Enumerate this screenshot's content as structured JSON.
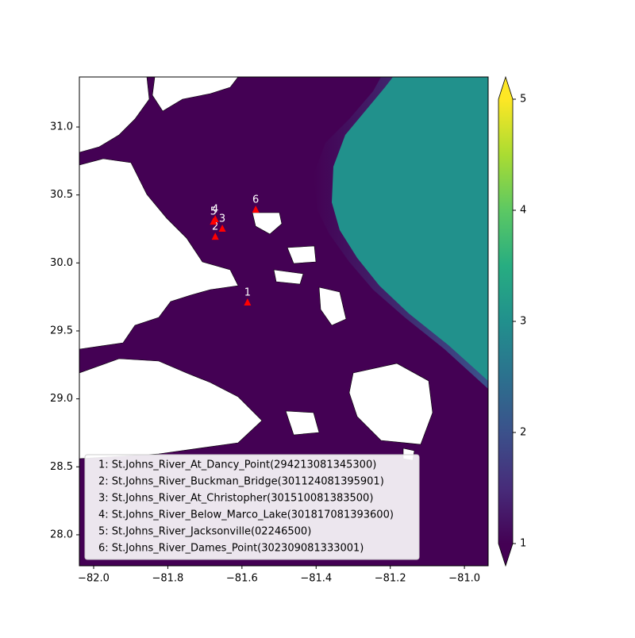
{
  "chart_data": {
    "type": "map",
    "xlim": [
      -82.0385,
      -80.936
    ],
    "ylim": [
      27.772,
      31.368
    ],
    "xticks": [
      {
        "value": -82.0,
        "label": "−82.0"
      },
      {
        "value": -81.8,
        "label": "−81.8"
      },
      {
        "value": -81.6,
        "label": "−81.6"
      },
      {
        "value": -81.4,
        "label": "−81.4"
      },
      {
        "value": -81.2,
        "label": "−81.2"
      },
      {
        "value": -81.0,
        "label": "−81.0"
      }
    ],
    "yticks": [
      {
        "value": 28.0,
        "label": "28.0"
      },
      28.5,
      {
        "value": 29.0,
        "label": "29.0"
      },
      29.5,
      {
        "value": 30.0,
        "label": "30.0"
      },
      30.5,
      {
        "value": 31.0,
        "label": "31.0"
      }
    ],
    "colormap": "viridis",
    "colorbar_lim": [
      1,
      5
    ],
    "colorbar_ticks": [
      1,
      2,
      3,
      4,
      5
    ],
    "colorbar_extend": "both",
    "stations": {
      "color": "red",
      "labels": [
        "1",
        "2",
        "3",
        "4",
        "5",
        "6"
      ],
      "x": [
        -81.585,
        -81.672,
        -81.653,
        -81.672,
        -81.677,
        -81.563
      ],
      "y": [
        29.71,
        30.194,
        30.253,
        30.323,
        30.305,
        30.393
      ],
      "names": [
        "1: St.Johns_River_At_Dancy_Point(294213081345300)",
        "2: St.Johns_River_Buckman_Bridge(301124081395901)",
        "3: St.Johns_River_At_Christopher(301510081383500)",
        "4: St.Johns_River_Below_Marco_Lake(301817081393600)",
        "5: St.Johns_River_Jacksonville(02246500)",
        "6: St.Johns_River_Dames_Point(302309081333001)"
      ]
    }
  }
}
